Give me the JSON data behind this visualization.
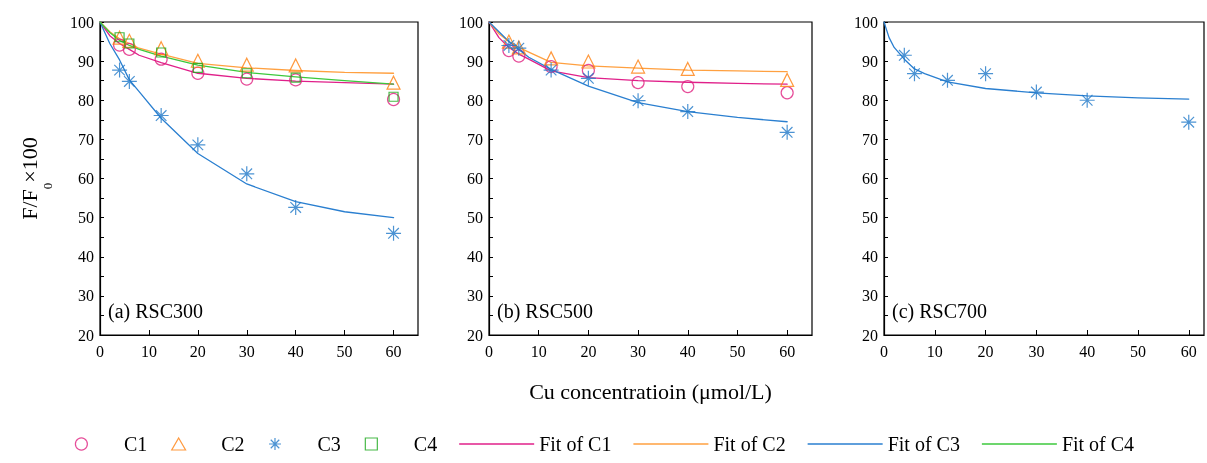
{
  "chart_data": [
    {
      "type": "scatter",
      "ylabel": "F/F$_{0}$×100",
      "xlim": [
        0,
        65
      ],
      "xticks": [
        0,
        10,
        20,
        30,
        40,
        50,
        60
      ],
      "ylim": [
        20,
        100
      ],
      "yticks": [
        20,
        30,
        40,
        50,
        60,
        70,
        80,
        90,
        100
      ],
      "legend": "bottom",
      "annotations": [
        "(a) RSC300"
      ],
      "series": [
        {
          "name": "C1",
          "type": "scatter",
          "marker": "circle",
          "color": "#e0207f",
          "x": [
            4,
            6,
            12.5,
            20,
            30,
            40,
            60
          ],
          "values": [
            94.1,
            93.0,
            90.5,
            86.9,
            85.4,
            85.2,
            80.2
          ]
        },
        {
          "name": "C2",
          "type": "scatter",
          "marker": "triangle",
          "color": "#ff7f0e",
          "x": [
            4,
            6,
            12.5,
            20,
            30,
            40,
            60
          ],
          "values": [
            96.0,
            95.2,
            93.3,
            90.1,
            89.1,
            88.9,
            84.5
          ]
        },
        {
          "name": "C3",
          "type": "scatter",
          "marker": "cross",
          "color": "#1f78c8",
          "x": [
            4,
            6,
            12.5,
            20,
            30,
            40,
            60
          ],
          "values": [
            87.7,
            84.8,
            76.1,
            68.6,
            61.2,
            52.6,
            46.0
          ]
        },
        {
          "name": "C4",
          "type": "scatter",
          "marker": "square",
          "color": "#1aa81a",
          "x": [
            4,
            6,
            12.5,
            20,
            30,
            40,
            60
          ],
          "values": [
            96.1,
            94.5,
            92.2,
            88.3,
            86.9,
            85.8,
            80.9
          ]
        },
        {
          "name": "Fit of C1",
          "type": "line",
          "marker": "none",
          "color": "#e0208a",
          "x": [
            0,
            2,
            4,
            6,
            8,
            12.5,
            20,
            30,
            40,
            50,
            60
          ],
          "values": [
            100,
            96.5,
            94.5,
            93.0,
            91.5,
            89.6,
            86.9,
            85.6,
            84.9,
            84.5,
            84.1
          ]
        },
        {
          "name": "Fit of C2",
          "type": "line",
          "marker": "none",
          "color": "#ffa040",
          "x": [
            0,
            2,
            4,
            6,
            8,
            12.5,
            20,
            30,
            40,
            50,
            60
          ],
          "values": [
            100,
            97.5,
            95.7,
            94.5,
            93.3,
            91.8,
            89.4,
            88.3,
            87.6,
            87.1,
            86.9
          ]
        },
        {
          "name": "Fit of C3",
          "type": "line",
          "marker": "none",
          "color": "#2a7fd0",
          "x": [
            0,
            2,
            4,
            6,
            8,
            12.5,
            20,
            30,
            40,
            50,
            60
          ],
          "values": [
            100,
            94.5,
            90.3,
            85.2,
            82.2,
            75.4,
            66.4,
            58.6,
            54.1,
            51.5,
            50.0
          ]
        },
        {
          "name": "Fit of C4",
          "type": "line",
          "marker": "none",
          "color": "#3cc83c",
          "x": [
            0,
            2,
            4,
            6,
            8,
            12.5,
            20,
            30,
            40,
            50,
            60
          ],
          "values": [
            100,
            97.3,
            95.3,
            94.0,
            93.0,
            91.3,
            89.0,
            87.1,
            86.0,
            85.0,
            84.1
          ]
        }
      ]
    },
    {
      "type": "scatter",
      "xlabel": "Cu concentratioin (μmol/L)",
      "xlim": [
        0,
        65
      ],
      "xticks": [
        0,
        10,
        20,
        30,
        40,
        50,
        60
      ],
      "ylim": [
        20,
        100
      ],
      "yticks": [
        20,
        30,
        40,
        50,
        60,
        70,
        80,
        90,
        100
      ],
      "annotations": [
        "(b) RSC500"
      ],
      "series": [
        {
          "name": "C1",
          "type": "scatter",
          "marker": "circle",
          "color": "#e0207f",
          "x": [
            4,
            6,
            12.5,
            20,
            30,
            40,
            60
          ],
          "values": [
            92.7,
            91.3,
            88.6,
            87.6,
            84.5,
            83.5,
            81.9
          ]
        },
        {
          "name": "C2",
          "type": "scatter",
          "marker": "triangle",
          "color": "#ff7f0e",
          "x": [
            4,
            6,
            12.5,
            20,
            30,
            40,
            60
          ],
          "values": [
            95.0,
            93.5,
            90.7,
            89.9,
            88.6,
            88.0,
            85.2
          ]
        },
        {
          "name": "C3",
          "type": "scatter",
          "marker": "cross",
          "color": "#1f78c8",
          "x": [
            4,
            6,
            12.5,
            20,
            30,
            40,
            60
          ],
          "values": [
            94.0,
            93.3,
            87.7,
            85.6,
            79.9,
            77.1,
            71.8
          ]
        },
        {
          "name": "Fit of C1",
          "type": "line",
          "marker": "none",
          "color": "#e0208a",
          "x": [
            0,
            2,
            4,
            6,
            8,
            12.5,
            20,
            30,
            40,
            50,
            60
          ],
          "values": [
            100,
            96.0,
            93.5,
            91.8,
            90.5,
            87.5,
            85.8,
            85.0,
            84.6,
            84.3,
            84.1
          ]
        },
        {
          "name": "Fit of C2",
          "type": "line",
          "marker": "none",
          "color": "#ffa040",
          "x": [
            0,
            2,
            4,
            6,
            8,
            12.5,
            20,
            30,
            40,
            50,
            60
          ],
          "values": [
            100,
            97.0,
            95.0,
            93.5,
            92.3,
            89.7,
            88.8,
            88.2,
            87.7,
            87.5,
            87.3
          ]
        },
        {
          "name": "Fit of C3",
          "type": "line",
          "marker": "none",
          "color": "#2a7fd0",
          "x": [
            0,
            2,
            4,
            6,
            8,
            12.5,
            20,
            30,
            40,
            50,
            60
          ],
          "values": [
            100,
            97.5,
            95.0,
            93.0,
            91.0,
            87.9,
            83.6,
            79.4,
            77.1,
            75.6,
            74.5
          ]
        }
      ]
    },
    {
      "type": "scatter",
      "xlim": [
        0,
        63
      ],
      "xticks": [
        0,
        10,
        20,
        30,
        40,
        50,
        60
      ],
      "ylim": [
        20,
        100
      ],
      "yticks": [
        20,
        30,
        40,
        50,
        60,
        70,
        80,
        90,
        100
      ],
      "annotations": [
        "(c) RSC700"
      ],
      "series": [
        {
          "name": "C3",
          "type": "scatter",
          "marker": "cross",
          "color": "#1f78c8",
          "x": [
            4,
            6,
            12.5,
            20,
            30,
            40,
            60
          ],
          "values": [
            91.5,
            86.8,
            85.1,
            86.8,
            82.1,
            80.0,
            74.4
          ]
        },
        {
          "name": "Fit of C3",
          "type": "line",
          "marker": "none",
          "color": "#2a7fd0",
          "x": [
            0,
            1,
            2,
            4,
            6,
            8,
            12.5,
            20,
            30,
            40,
            50,
            60
          ],
          "values": [
            100,
            96.0,
            93.5,
            90.5,
            88.0,
            86.8,
            84.7,
            83.0,
            81.9,
            81.1,
            80.6,
            80.3
          ]
        }
      ]
    }
  ]
}
